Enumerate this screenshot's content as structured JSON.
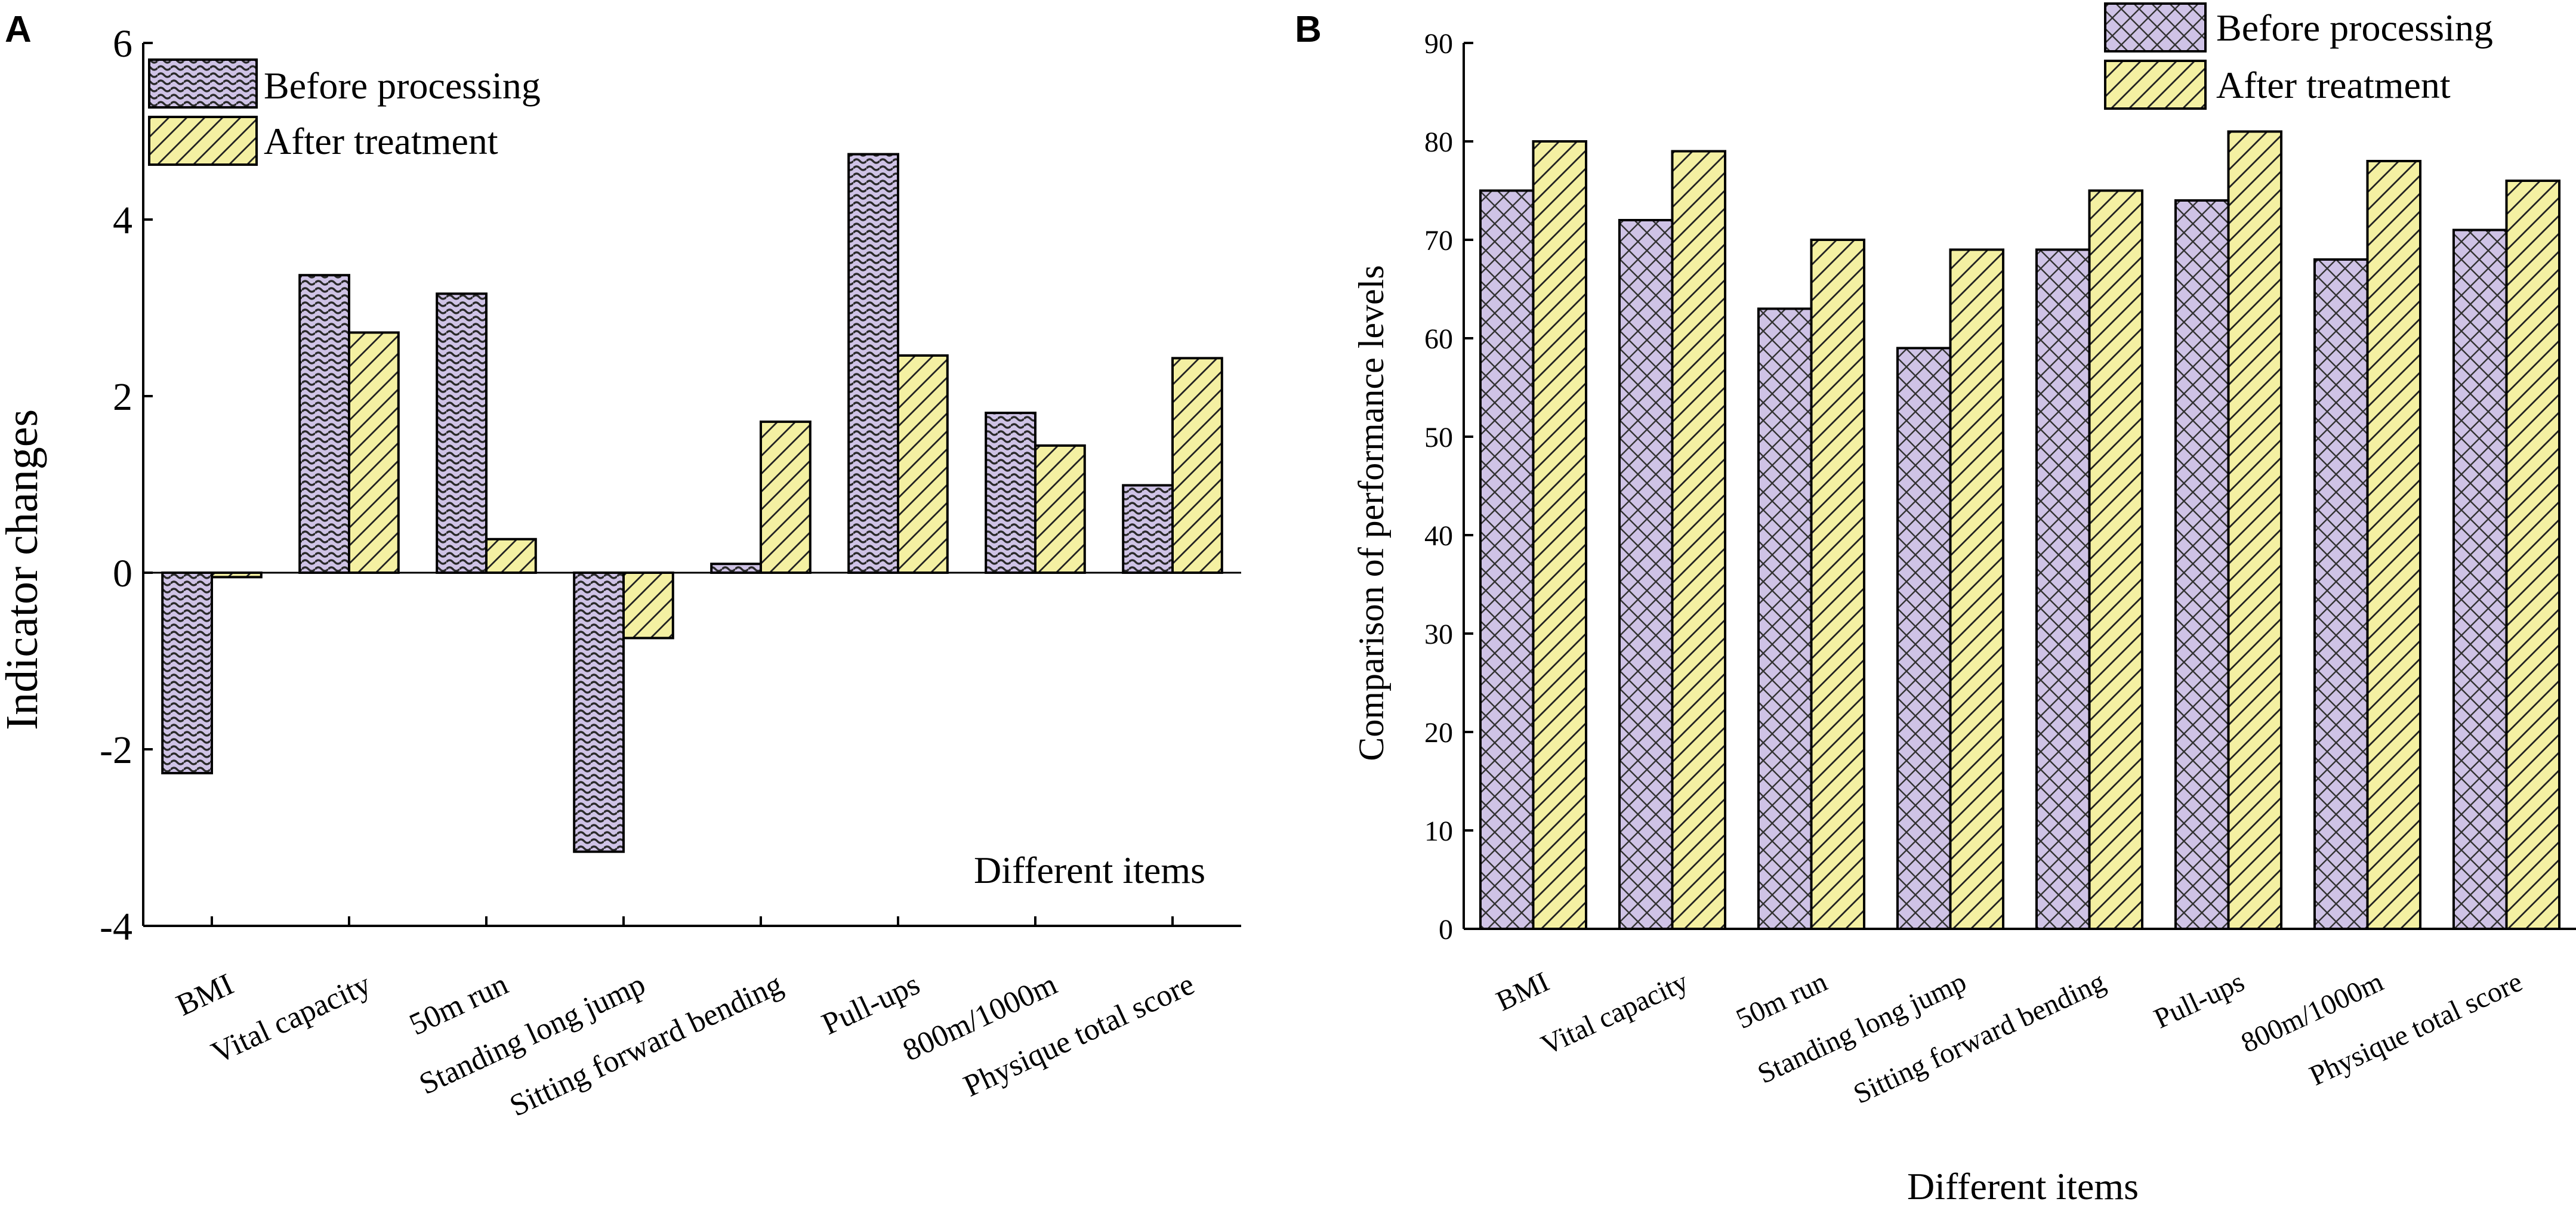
{
  "colors": {
    "before": "#cfc3e6",
    "after": "#f4f0a2",
    "ink": "#000000"
  },
  "chart_data": [
    {
      "panel": "A",
      "type": "bar",
      "title": "",
      "xlabel": "Different items",
      "ylabel": "Indicator changes",
      "ylim": [
        -4,
        6
      ],
      "yticks": [
        "-4",
        "-2",
        "0",
        "2",
        "4",
        "6"
      ],
      "grid": false,
      "legend_position": "top-left",
      "categories": [
        "BMI",
        "Vital capacity",
        "50m run",
        "Standing long jump",
        "Sitting forward bending",
        "Pull-ups",
        "800m/1000m",
        "Physique total score"
      ],
      "series": [
        {
          "name": "Before processing",
          "pattern": "wave",
          "values": [
            -2.27,
            3.37,
            3.16,
            -3.16,
            0.1,
            4.74,
            1.81,
            0.99
          ]
        },
        {
          "name": "After treatment",
          "pattern": "hatch",
          "values": [
            -0.05,
            2.72,
            0.38,
            -0.74,
            1.71,
            2.46,
            1.44,
            2.43
          ]
        }
      ]
    },
    {
      "panel": "B",
      "type": "bar",
      "title": "",
      "xlabel": "Different items",
      "ylabel": "Comparison of performance levels",
      "ylim": [
        0,
        90
      ],
      "yticks": [
        "0",
        "10",
        "20",
        "30",
        "40",
        "50",
        "60",
        "70",
        "80",
        "90"
      ],
      "grid": false,
      "legend_position": "top-right",
      "categories": [
        "BMI",
        "Vital capacity",
        "50m run",
        "Standing long jump",
        "Sitting forward bending",
        "Pull-ups",
        "800m/1000m",
        "Physique total score"
      ],
      "series": [
        {
          "name": "Before processing",
          "pattern": "crosshatch",
          "values": [
            75,
            72,
            63,
            59,
            69,
            74,
            68,
            71
          ]
        },
        {
          "name": "After treatment",
          "pattern": "hatch",
          "values": [
            80,
            79,
            70,
            69,
            75,
            81,
            78,
            76
          ]
        }
      ]
    }
  ]
}
